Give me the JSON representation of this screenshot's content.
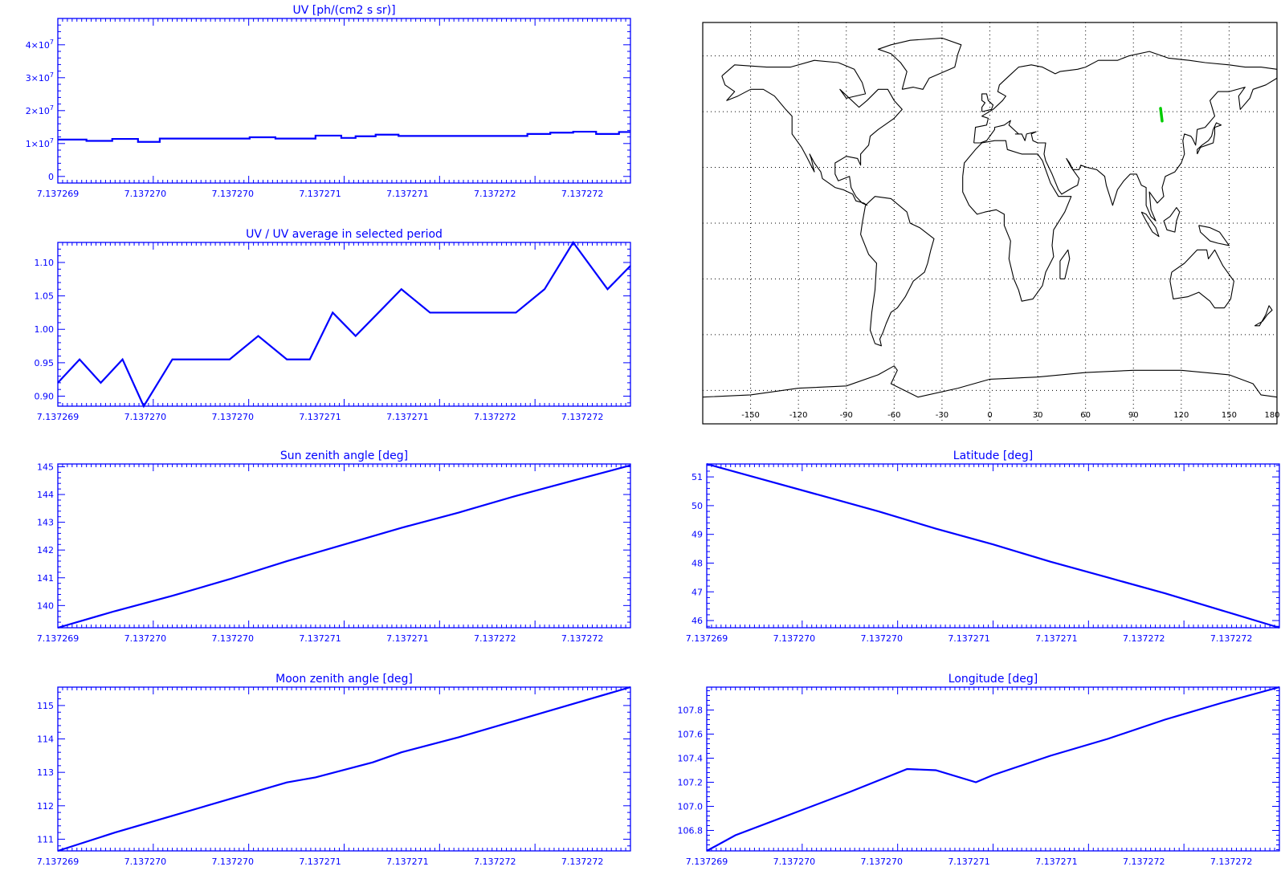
{
  "colors": {
    "plot": "#0000ff",
    "map_border": "#000000",
    "map_grid": "#000000",
    "track": "#00cc00"
  },
  "x_tick_labels": [
    "7.137269",
    "7.137270",
    "7.137270",
    "7.137271",
    "7.137271",
    "7.137272",
    "7.137272"
  ],
  "chart_data": [
    {
      "type": "line",
      "title": "UV [ph/(cm2 s sr)]",
      "step": true,
      "xlim": [
        0,
        1
      ],
      "ylim": [
        -2000000,
        48000000
      ],
      "yticks": [
        0,
        10000000,
        20000000,
        30000000,
        40000000
      ],
      "ytick_labels": [
        "0",
        "1x10^7",
        "2x10^7",
        "3x10^7",
        "4x10^7"
      ],
      "x": [
        0,
        0.05,
        0.095,
        0.14,
        0.178,
        0.22,
        0.3,
        0.335,
        0.38,
        0.45,
        0.495,
        0.52,
        0.555,
        0.595,
        0.64,
        0.78,
        0.82,
        0.86,
        0.9,
        0.94,
        0.98,
        1.0
      ],
      "values": [
        11200000,
        10800000,
        11400000,
        10500000,
        11500000,
        11500000,
        11500000,
        11900000,
        11500000,
        12400000,
        11700000,
        12200000,
        12700000,
        12300000,
        12300000,
        12300000,
        12900000,
        13300000,
        13600000,
        12900000,
        13500000,
        13500000
      ]
    },
    {
      "type": "line",
      "title": "UV / UV average in selected period",
      "xlim": [
        0,
        1
      ],
      "ylim": [
        0.885,
        1.13
      ],
      "yticks": [
        0.9,
        0.95,
        1.0,
        1.05,
        1.1
      ],
      "ytick_labels": [
        "0.90",
        "0.95",
        "1.00",
        "1.05",
        "1.10"
      ],
      "x": [
        0,
        0.038,
        0.075,
        0.113,
        0.15,
        0.2,
        0.3,
        0.35,
        0.4,
        0.44,
        0.48,
        0.52,
        0.56,
        0.6,
        0.65,
        0.8,
        0.85,
        0.9,
        0.96,
        1.0
      ],
      "values": [
        0.92,
        0.955,
        0.92,
        0.955,
        0.885,
        0.955,
        0.955,
        0.99,
        0.955,
        0.955,
        1.025,
        0.99,
        1.025,
        1.06,
        1.025,
        1.025,
        1.06,
        1.13,
        1.06,
        1.095
      ]
    },
    {
      "type": "line",
      "title": "Sun zenith angle [deg]",
      "xlim": [
        0,
        1
      ],
      "ylim": [
        139.2,
        145.1
      ],
      "yticks": [
        140,
        141,
        142,
        143,
        144,
        145
      ],
      "ytick_labels": [
        "140",
        "141",
        "142",
        "143",
        "144",
        "145"
      ],
      "x": [
        0,
        0.1,
        0.2,
        0.3,
        0.4,
        0.5,
        0.6,
        0.7,
        0.8,
        0.9,
        1.0
      ],
      "values": [
        139.2,
        139.8,
        140.35,
        140.95,
        141.6,
        142.2,
        142.8,
        143.35,
        143.95,
        144.5,
        145.05
      ]
    },
    {
      "type": "line",
      "title": "Latitude [deg]",
      "xlim": [
        0,
        1
      ],
      "ylim": [
        45.75,
        51.45
      ],
      "yticks": [
        46,
        47,
        48,
        49,
        50,
        51
      ],
      "ytick_labels": [
        "46",
        "47",
        "48",
        "49",
        "50",
        "51"
      ],
      "x": [
        0,
        0.1,
        0.2,
        0.3,
        0.4,
        0.5,
        0.6,
        0.7,
        0.8,
        0.9,
        1.0
      ],
      "values": [
        51.45,
        50.9,
        50.35,
        49.8,
        49.2,
        48.65,
        48.05,
        47.5,
        46.95,
        46.35,
        45.75
      ]
    },
    {
      "type": "line",
      "title": "Moon zenith angle [deg]",
      "xlim": [
        0,
        1
      ],
      "ylim": [
        110.65,
        115.55
      ],
      "yticks": [
        111,
        112,
        113,
        114,
        115
      ],
      "ytick_labels": [
        "111",
        "112",
        "113",
        "114",
        "115"
      ],
      "x": [
        0,
        0.1,
        0.2,
        0.3,
        0.4,
        0.45,
        0.55,
        0.6,
        0.7,
        0.8,
        0.9,
        1.0
      ],
      "values": [
        110.65,
        111.2,
        111.7,
        112.2,
        112.7,
        112.85,
        113.3,
        113.6,
        114.05,
        114.55,
        115.05,
        115.55
      ]
    },
    {
      "type": "line",
      "title": "Longitude [deg]",
      "xlim": [
        0,
        1
      ],
      "ylim": [
        106.63,
        107.99
      ],
      "yticks": [
        106.8,
        107.0,
        107.2,
        107.4,
        107.6,
        107.8
      ],
      "ytick_labels": [
        "106.8",
        "107.0",
        "107.2",
        "107.4",
        "107.6",
        "107.8"
      ],
      "x": [
        0,
        0.05,
        0.15,
        0.25,
        0.35,
        0.4,
        0.47,
        0.5,
        0.6,
        0.7,
        0.8,
        0.9,
        1.0
      ],
      "values": [
        106.63,
        106.76,
        106.94,
        107.12,
        107.31,
        107.3,
        107.2,
        107.26,
        107.42,
        107.56,
        107.72,
        107.86,
        107.99
      ]
    }
  ],
  "map": {
    "x_tick_labels": [
      "-150",
      "-120",
      "-90",
      "-60",
      "-30",
      "0",
      "30",
      "60",
      "90",
      "120",
      "150",
      "180"
    ],
    "x_tick_values": [
      -150,
      -120,
      -90,
      -60,
      -30,
      0,
      30,
      60,
      90,
      120,
      150,
      180
    ],
    "lat_lines": [
      75,
      50,
      25,
      0,
      -25,
      -50,
      -75
    ],
    "lon_range": [
      -180,
      180
    ],
    "lat_range": [
      -90,
      90
    ],
    "track_lon": [
      107.0,
      108.0
    ],
    "track_lat": [
      51.5,
      45.8
    ]
  }
}
